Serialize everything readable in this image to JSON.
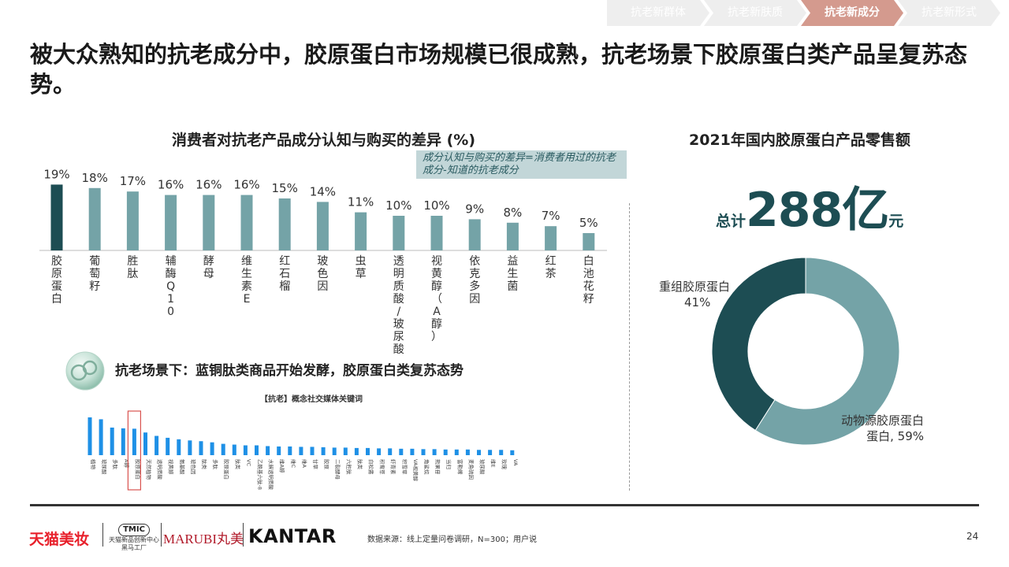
{
  "nav": {
    "tabs": [
      {
        "label": "抗老新群体",
        "active": false
      },
      {
        "label": "抗老新肤质",
        "active": false
      },
      {
        "label": "抗老新成分",
        "active": true
      },
      {
        "label": "抗老新形式",
        "active": false
      }
    ],
    "colors": {
      "inactive": "#eeeeee",
      "active": "#d49a8e"
    }
  },
  "title": "被大众熟知的抗老成分中，胶原蛋白市场规模已很成熟，抗老场景下胶原蛋白类产品呈复苏态势。",
  "chart_data": [
    {
      "type": "bar",
      "title": "消费者对抗老产品成分认知与购买的差异 (%)",
      "annotation": "成分认知与购买的差异=消费者用过的抗老成分-知道的抗老成分",
      "categories": [
        "胶原蛋白",
        "葡萄籽",
        "胜肽",
        "辅酶Q10",
        "酵母",
        "维生素E",
        "红石榴",
        "玻色因",
        "虫草",
        "透明质酸/玻尿酸",
        "视黄醇（A醇）",
        "依克多因",
        "益生菌",
        "红茶",
        "白池花籽"
      ],
      "values": [
        19,
        18,
        17,
        16,
        16,
        16,
        15,
        14,
        11,
        10,
        10,
        9,
        8,
        7,
        5
      ],
      "data_labels": [
        "19%",
        "18%",
        "17%",
        "16%",
        "16%",
        "16%",
        "15%",
        "14%",
        "11%",
        "10%",
        "10%",
        "9%",
        "8%",
        "7%",
        "5%"
      ],
      "colors": {
        "highlight": "#1d4d53",
        "default": "#74a3a7"
      },
      "ylim": [
        0,
        20
      ]
    },
    {
      "type": "pie",
      "title": "2021年国内胶原蛋白产品零售额",
      "total": {
        "prefix": "总计",
        "value": "288亿",
        "suffix": "元"
      },
      "slices": [
        {
          "label": "重组胶原蛋白",
          "value": 41,
          "text": "41%",
          "color": "#1d4d53"
        },
        {
          "label": "动物源胶原蛋白",
          "value": 59,
          "text": "59%",
          "color": "#74a3a7"
        }
      ]
    },
    {
      "type": "bar",
      "title": "【抗老】概念社交媒体关键词",
      "categories": [
        "植物",
        "玻尿酸",
        "多肽",
        "A醇",
        "胶原蛋白",
        "天然植物",
        "透明质酸",
        "视黄醇",
        "氨基酸",
        "玻色因",
        "肽类",
        "多肽",
        "胶原蛋白",
        "肽类",
        "VC",
        "乙酰基六肽-8",
        "水解透明质酸",
        "维A醇",
        "维C",
        "维A",
        "甘草",
        "胶原",
        "二裂酵母",
        "六胜肽",
        "肽类",
        "白松露",
        "积雪草",
        "虾青素",
        "积雪草",
        "VA视黄醇",
        "角鲨烷",
        "熊果苷",
        "当归",
        "富勒烯",
        "麦角硫因",
        "玻尿酸",
        "维E",
        "玫瑰",
        "VA"
      ],
      "values": [
        100,
        95,
        73,
        71,
        70,
        60,
        51,
        46,
        42,
        39,
        37,
        34,
        30,
        28,
        26,
        26,
        24,
        23,
        23,
        22,
        22,
        21,
        20,
        20,
        19,
        19,
        18,
        18,
        17,
        17,
        16,
        16,
        15,
        15,
        15,
        14,
        14,
        14,
        13
      ],
      "highlight_index": 4,
      "color": "#1e90e6"
    }
  ],
  "subsection": {
    "title": "抗老场景下：蓝铜肽类商品开始发酵，胶原蛋白类复苏态势"
  },
  "footer": {
    "logo_tmall": "天猫美妆",
    "logo_tmic_box": "TMIC",
    "logo_tmic_line1": "天猫新品创新中心",
    "logo_tmic_line2": "黑马工厂",
    "logo_marubi": "MARUBI",
    "logo_marubi_cn": "丸美",
    "logo_kantar": "KANTAR",
    "source": "数据来源：线上定量问卷调研，N=300；用户说",
    "page": "24"
  }
}
